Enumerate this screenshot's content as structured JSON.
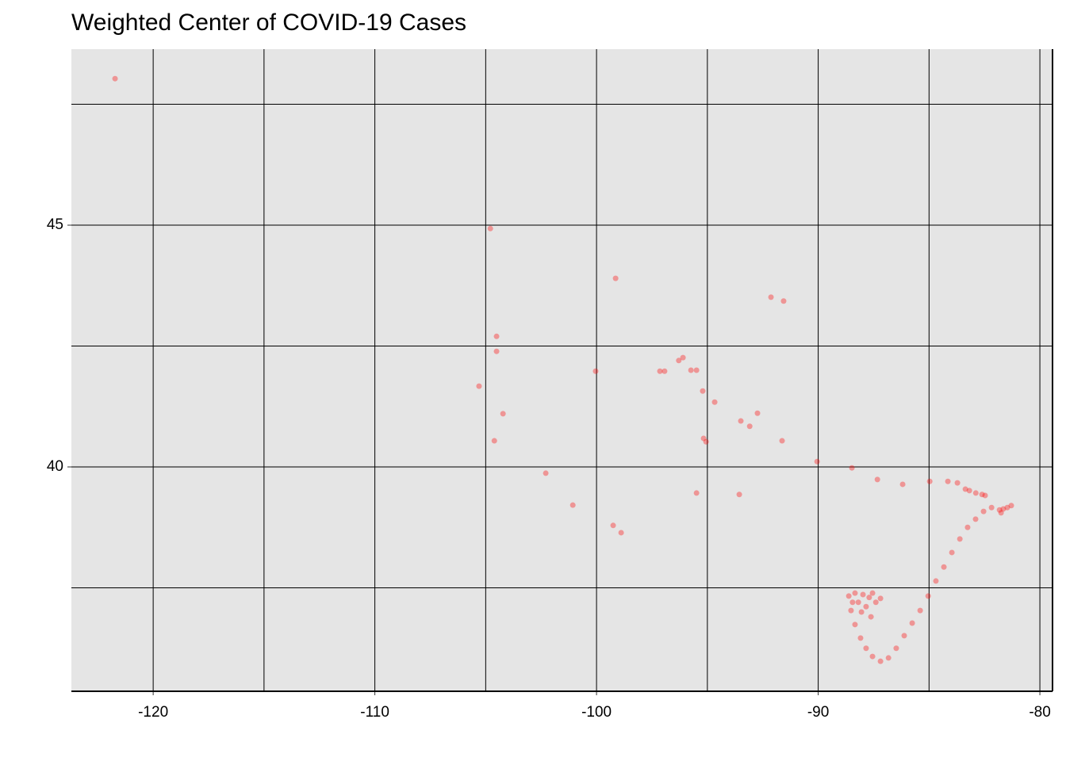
{
  "chart_data": {
    "type": "scatter",
    "title": "Weighted Center of COVID-19 Cases",
    "color": "#ff0000",
    "grid": true,
    "xlim": [
      -123.69,
      -79.43
    ],
    "ylim": [
      35.36,
      48.64
    ],
    "xticks": [
      -120,
      -110,
      -100,
      -90,
      -80
    ],
    "yticks": [
      40,
      45
    ],
    "x_minor_ticks": [
      -115,
      -105,
      -95,
      -85
    ],
    "y_minor_ticks": [
      37.5,
      42.5,
      47.5
    ],
    "x": [
      -121.72,
      -104.79,
      -99.14,
      -92.13,
      -91.56,
      -104.51,
      -104.51,
      -100.04,
      -105.3,
      -97.14,
      -96.93,
      -96.29,
      -96.1,
      -95.74,
      -95.49,
      -95.21,
      -94.67,
      -104.22,
      -92.74,
      -93.49,
      -93.09,
      -104.61,
      -95.17,
      -95.06,
      -91.63,
      -90.05,
      -88.48,
      -87.33,
      -86.19,
      -102.29,
      -95.49,
      -93.56,
      -101.07,
      -99.25,
      -98.89,
      -84.97,
      -84.15,
      -83.72,
      -83.36,
      -83.18,
      -82.89,
      -82.61,
      -82.47,
      -81.29,
      -81.47,
      -81.65,
      -81.82,
      -81.75,
      -82.18,
      -82.54,
      -82.9,
      -83.26,
      -83.61,
      -83.97,
      -84.33,
      -84.69,
      -85.04,
      -85.4,
      -85.76,
      -86.12,
      -86.48,
      -86.83,
      -87.19,
      -87.55,
      -87.84,
      -88.09,
      -88.34,
      -88.52,
      -88.62,
      -88.34,
      -87.98,
      -87.55,
      -87.19,
      -87.84,
      -87.62,
      -88.19,
      -88.45,
      -87.4,
      -87.7,
      -88.05
    ],
    "y": [
      48.03,
      44.93,
      43.9,
      43.51,
      43.43,
      42.7,
      42.39,
      41.98,
      41.67,
      41.98,
      41.98,
      42.2,
      42.26,
      42.0,
      42.0,
      41.57,
      41.34,
      41.1,
      41.11,
      40.95,
      40.84,
      40.54,
      40.59,
      40.52,
      40.54,
      40.11,
      39.98,
      39.74,
      39.64,
      39.87,
      39.46,
      39.43,
      39.21,
      38.79,
      38.64,
      39.7,
      39.7,
      39.67,
      39.54,
      39.51,
      39.46,
      39.43,
      39.41,
      39.2,
      39.16,
      39.13,
      39.11,
      39.05,
      39.16,
      39.08,
      38.92,
      38.75,
      38.51,
      38.23,
      37.93,
      37.64,
      37.33,
      37.03,
      36.77,
      36.51,
      36.25,
      36.05,
      35.98,
      36.08,
      36.25,
      36.46,
      36.74,
      37.03,
      37.33,
      37.39,
      37.36,
      37.39,
      37.28,
      37.11,
      36.9,
      37.2,
      37.2,
      37.2,
      37.3,
      37.0
    ]
  }
}
